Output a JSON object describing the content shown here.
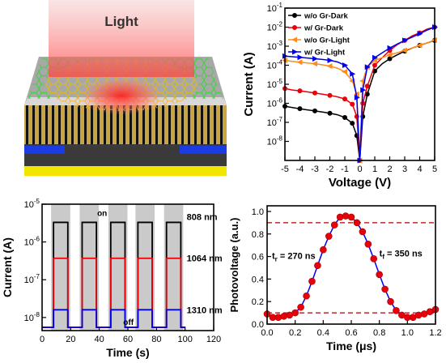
{
  "illustration": {
    "light_label": "Light"
  },
  "chart_data": [
    {
      "type": "line",
      "xlabel": "Voltage (V)",
      "ylabel": "Current (A)",
      "scale_y": "log",
      "xlim": [
        -5,
        5
      ],
      "ylim": [
        1e-09,
        0.1
      ],
      "x_ticks": [
        "-5",
        "-4",
        "-3",
        "-2",
        "-1",
        "0",
        "1",
        "2",
        "3",
        "4",
        "5"
      ],
      "y_ticks": [
        {
          "b": "10",
          "e": "-1"
        },
        {
          "b": "10",
          "e": "-2"
        },
        {
          "b": "10",
          "e": "-3"
        },
        {
          "b": "10",
          "e": "-4"
        },
        {
          "b": "10",
          "e": "-5"
        },
        {
          "b": "10",
          "e": "-6"
        },
        {
          "b": "10",
          "e": "-7"
        },
        {
          "b": "10",
          "e": "-8"
        }
      ],
      "legend": "top-left",
      "series": [
        {
          "name": "w/o Gr-Dark",
          "color": "#000000",
          "marker": "circle",
          "x": [
            -5,
            -4.5,
            -4,
            -3.5,
            -3,
            -2.5,
            -2,
            -1.5,
            -1,
            -0.5,
            -0.2,
            0,
            0.2,
            0.5,
            1,
            1.5,
            2,
            2.5,
            3,
            3.5,
            4,
            4.5,
            5
          ],
          "y": [
            7e-07,
            6e-07,
            5.2e-07,
            4.5e-07,
            4e-07,
            3.5e-07,
            3e-07,
            2.5e-07,
            1.8e-07,
            9e-08,
            2e-08,
            1e-09,
            2e-07,
            3e-06,
            5e-05,
            0.00012,
            0.00022,
            0.00035,
            0.00055,
            0.0008,
            0.0011,
            0.0015,
            0.002
          ]
        },
        {
          "name": "w/ Gr-Dark",
          "color": "#e8000b",
          "marker": "circle",
          "x": [
            -5,
            -4.5,
            -4,
            -3.5,
            -3,
            -2.5,
            -2,
            -1.5,
            -1,
            -0.5,
            -0.2,
            0,
            0.2,
            0.5,
            1,
            1.5,
            2,
            2.5,
            3,
            3.5,
            4,
            4.5,
            5
          ],
          "y": [
            6e-06,
            5e-06,
            4.5e-06,
            4e-06,
            3.5e-06,
            3e-06,
            2.6e-06,
            2.2e-06,
            1.7e-06,
            9e-07,
            2e-07,
            1e-09,
            1e-06,
            8e-06,
            0.0001,
            0.00025,
            0.0006,
            0.0012,
            0.002,
            0.0035,
            0.005,
            0.008,
            0.01
          ]
        },
        {
          "name": "w/o Gr-Light",
          "color": "#ff8c1a",
          "marker": "triangle-left",
          "x": [
            -5,
            -4.5,
            -4,
            -3.5,
            -3,
            -2.5,
            -2,
            -1.5,
            -1,
            -0.5,
            -0.2,
            0,
            0.2,
            0.5,
            1,
            1.5,
            2,
            2.5,
            3,
            3.5,
            4,
            4.5,
            5
          ],
          "y": [
            0.00018,
            0.00016,
            0.000145,
            0.00013,
            0.00012,
            0.000105,
            9e-05,
            7e-05,
            4.5e-05,
            1.5e-05,
            3e-06,
            1e-09,
            1.5e-05,
            8e-05,
            0.00018,
            0.00025,
            0.00035,
            0.00045,
            0.0006,
            0.0008,
            0.0011,
            0.0015,
            0.0021
          ]
        },
        {
          "name": "w/ Gr-Light",
          "color": "#0000ee",
          "marker": "triangle-right",
          "x": [
            -5,
            -4.5,
            -4,
            -3.5,
            -3,
            -2.5,
            -2,
            -1.5,
            -1,
            -0.5,
            -0.2,
            0,
            0.2,
            0.5,
            1,
            1.5,
            2,
            2.5,
            3,
            3.5,
            4,
            4.5,
            5
          ],
          "y": [
            0.0003,
            0.00028,
            0.00026,
            0.00024,
            0.00022,
            0.0002,
            0.00018,
            0.00015,
            0.0001,
            3.5e-05,
            2e-06,
            1e-09,
            5e-06,
            8e-05,
            0.00025,
            0.00045,
            0.0008,
            0.0013,
            0.002,
            0.003,
            0.0045,
            0.007,
            0.01
          ]
        }
      ]
    },
    {
      "type": "line",
      "xlabel": "Time (s)",
      "ylabel": "Current (A)",
      "scale_y": "log",
      "xlim": [
        0,
        120
      ],
      "ylim": [
        4.5e-09,
        1e-05
      ],
      "x_ticks": [
        "0",
        "20",
        "40",
        "60",
        "80",
        "100",
        "120"
      ],
      "y_ticks": [
        {
          "b": "10",
          "e": "-5"
        },
        {
          "b": "10",
          "e": "-6"
        },
        {
          "b": "10",
          "e": "-7"
        },
        {
          "b": "10",
          "e": "-8"
        }
      ],
      "pulses_on_s": [
        [
          8,
          18
        ],
        [
          28,
          38
        ],
        [
          48,
          58
        ],
        [
          67,
          77
        ],
        [
          87,
          97
        ]
      ],
      "annotations": [
        "on",
        "off"
      ],
      "series": [
        {
          "name": "808 nm",
          "color": "#000000",
          "on": 3.3e-06,
          "off": 5.5e-09
        },
        {
          "name": "1064 nm",
          "color": "#e8000b",
          "on": 3.7e-07,
          "off": 5.5e-09
        },
        {
          "name": "1310 nm",
          "color": "#0000ee",
          "on": 1.6e-08,
          "off": 5.5e-09
        }
      ]
    },
    {
      "type": "scatter",
      "xlabel": "Time (μs)",
      "ylabel": "Photovoltage (a.u.)",
      "xlim": [
        0,
        1.2
      ],
      "ylim": [
        0,
        1.05
      ],
      "x_ticks": [
        "0.0",
        "0.2",
        "0.4",
        "0.6",
        "0.8",
        "1.0",
        "1.2"
      ],
      "y_ticks": [
        "0.0",
        "0.2",
        "0.4",
        "0.6",
        "0.8",
        "1.0"
      ],
      "ref_lines": [
        0.9,
        0.1
      ],
      "annotations": [
        {
          "text": "t",
          "sub": "r",
          "rest": " = 270 ns"
        },
        {
          "text": "t",
          "sub": "f",
          "rest": " = 350 ns"
        }
      ],
      "series": [
        {
          "name": "",
          "color": "#e8000b",
          "line_color": "#0000ee",
          "x": [
            0.0,
            0.04,
            0.08,
            0.12,
            0.16,
            0.2,
            0.24,
            0.28,
            0.32,
            0.36,
            0.4,
            0.44,
            0.48,
            0.52,
            0.56,
            0.6,
            0.64,
            0.68,
            0.72,
            0.76,
            0.8,
            0.84,
            0.88,
            0.92,
            0.96,
            1.0,
            1.04,
            1.08,
            1.12,
            1.16,
            1.2
          ],
          "y": [
            0.09,
            0.06,
            0.06,
            0.07,
            0.08,
            0.1,
            0.15,
            0.25,
            0.38,
            0.52,
            0.66,
            0.78,
            0.88,
            0.95,
            0.96,
            0.95,
            0.9,
            0.82,
            0.71,
            0.58,
            0.44,
            0.31,
            0.2,
            0.12,
            0.08,
            0.06,
            0.06,
            0.08,
            0.09,
            0.11,
            0.13
          ]
        }
      ]
    }
  ]
}
